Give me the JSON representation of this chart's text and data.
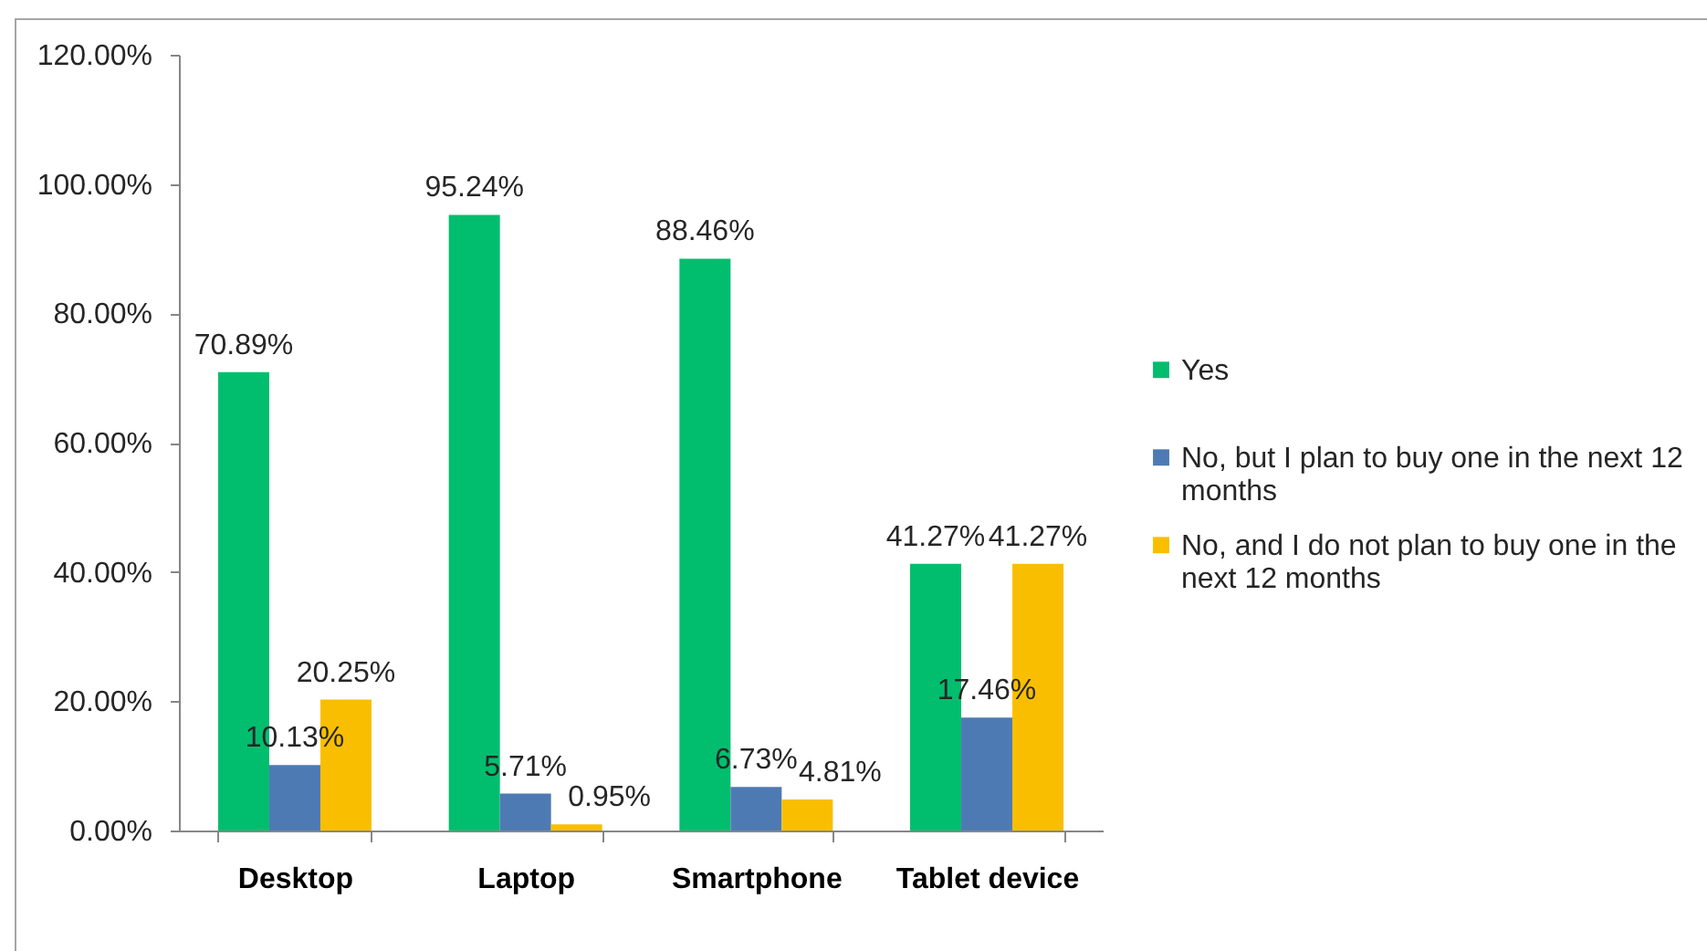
{
  "chart_data": {
    "type": "bar",
    "categories": [
      "Desktop",
      "Laptop",
      "Smartphone",
      "Tablet device"
    ],
    "series": [
      {
        "name": "Yes",
        "color": "#00be6e",
        "values": [
          70.89,
          95.24,
          88.46,
          41.27
        ],
        "value_labels": [
          "70.89%",
          "95.24%",
          "88.46%",
          "41.27%"
        ]
      },
      {
        "name": "No, but I plan to buy one in the next 12 months",
        "color": "#4e7ab4",
        "values": [
          10.13,
          5.71,
          6.73,
          17.46
        ],
        "value_labels": [
          "10.13%",
          "5.71%",
          "6.73%",
          "17.46%"
        ]
      },
      {
        "name": "No, and I do not plan to buy one in the next 12 months",
        "color": "#fabe00",
        "values": [
          20.25,
          0.95,
          4.81,
          41.27
        ],
        "value_labels": [
          "20.25%",
          "0.95%",
          "4.81%",
          "41.27%"
        ]
      }
    ],
    "ylim": [
      0,
      120
    ],
    "yticks": [
      {
        "value": 0,
        "label": "0.00%"
      },
      {
        "value": 20,
        "label": "20.00%"
      },
      {
        "value": 40,
        "label": "40.00%"
      },
      {
        "value": 60,
        "label": "60.00%"
      },
      {
        "value": 80,
        "label": "80.00%"
      },
      {
        "value": 100,
        "label": "100.00%"
      },
      {
        "value": 120,
        "label": "120.00%"
      }
    ],
    "grid": false,
    "legend": "right"
  }
}
